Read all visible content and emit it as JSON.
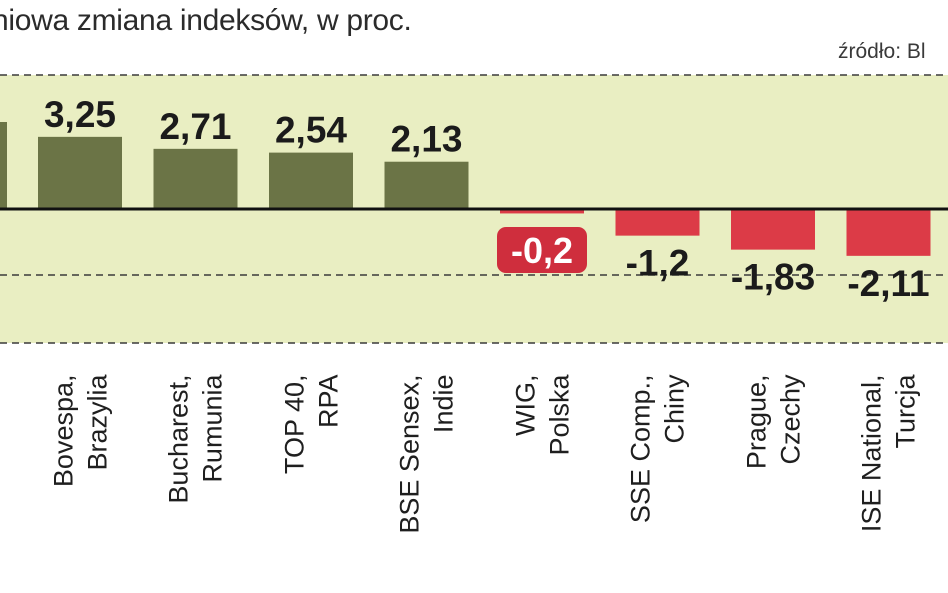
{
  "subtitle": "niowa zmiana indeksów, w proc.",
  "source": "źródło: Bl",
  "colors": {
    "positive_bar": "#6b7446",
    "negative_bar": "#dc3b47",
    "highlight_label_bg": "#cf2e3d",
    "band": "#e9eec2"
  },
  "chart_data": {
    "type": "bar",
    "categories": [
      [
        "Bovespa,",
        "Brazylia"
      ],
      [
        "Bucharest,",
        "Rumunia"
      ],
      [
        "TOP 40,",
        "RPA"
      ],
      [
        "BSE Sensex,",
        "Indie"
      ],
      [
        "WIG,",
        "Polska"
      ],
      [
        "SSE Comp.,",
        "Chiny"
      ],
      [
        "Prague,",
        "Czechy"
      ],
      [
        "ISE National,",
        "Turcja"
      ]
    ],
    "values": [
      3.25,
      2.71,
      2.54,
      2.13,
      -0.2,
      -1.2,
      -1.83,
      -2.11
    ],
    "value_labels": [
      "3,25",
      "2,71",
      "2,54",
      "2,13",
      "-0,2",
      "-1,2",
      "-1,83",
      "-2,11"
    ],
    "highlighted_category": "WIG, Polska",
    "grid": "dashed horizontal lines",
    "legend": "none"
  }
}
